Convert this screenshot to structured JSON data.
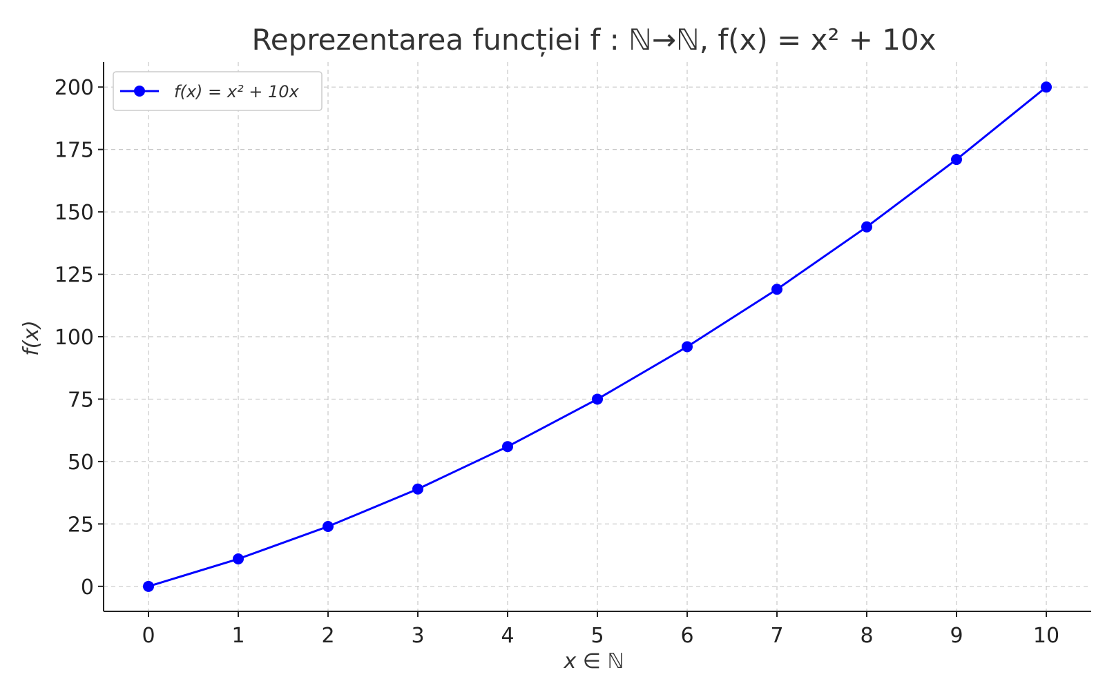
{
  "chart_data": {
    "type": "line",
    "title": "Reprezentarea funcției f : ℕ→ℕ,  f(x) = x² + 10x",
    "xlabel": "x ∈ ℕ",
    "ylabel": "f(x)",
    "x": [
      0,
      1,
      2,
      3,
      4,
      5,
      6,
      7,
      8,
      9,
      10
    ],
    "series": [
      {
        "name": "f(x) = x² + 10x",
        "values": [
          0,
          11,
          24,
          39,
          56,
          75,
          96,
          119,
          144,
          171,
          200
        ],
        "color": "#0000ff",
        "marker": "circle"
      }
    ],
    "xlim": [
      -0.5,
      10.5
    ],
    "ylim": [
      -10,
      210
    ],
    "x_ticks": [
      "0",
      "1",
      "2",
      "3",
      "4",
      "5",
      "6",
      "7",
      "8",
      "9",
      "10"
    ],
    "y_ticks": [
      "0",
      "25",
      "50",
      "75",
      "100",
      "125",
      "150",
      "175",
      "200"
    ],
    "grid": true,
    "legend_position": "top-left"
  }
}
